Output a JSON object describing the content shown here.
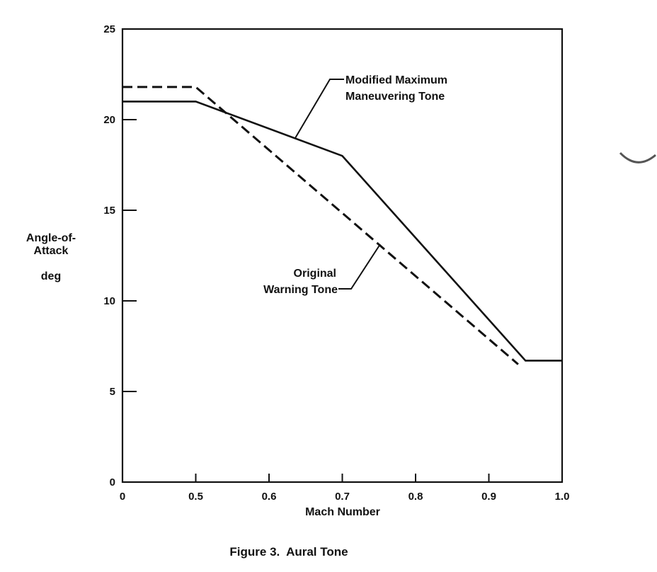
{
  "chart_data": {
    "type": "line",
    "x_axis": {
      "label": "Mach Number",
      "ticks": [
        0,
        0.5,
        0.6,
        0.7,
        0.8,
        0.9,
        1.0
      ],
      "tick_labels": [
        "0",
        "0.5",
        "0.6",
        "0.7",
        "0.8",
        "0.9",
        "1.0"
      ]
    },
    "y_axis": {
      "label_lines": [
        "Angle-of-",
        "Attack",
        "deg"
      ],
      "ticks": [
        0,
        5,
        10,
        15,
        20,
        25
      ],
      "tick_labels": [
        "0",
        "5",
        "10",
        "15",
        "20",
        "25"
      ],
      "ylim": [
        0,
        25
      ]
    },
    "grid": false,
    "series": [
      {
        "name": "Modified Maximum Maneuvering Tone",
        "style": "solid",
        "points": [
          [
            0,
            21.0
          ],
          [
            0.5,
            21.0
          ],
          [
            0.7,
            18.0
          ],
          [
            0.95,
            6.7
          ],
          [
            1.0,
            6.7
          ]
        ]
      },
      {
        "name": "Original Warning Tone",
        "style": "dashed",
        "points": [
          [
            0,
            21.8
          ],
          [
            0.5,
            21.8
          ],
          [
            0.94,
            6.5
          ]
        ]
      }
    ],
    "annotations": [
      {
        "lines": [
          "Modified Maximum",
          "Maneuvering Tone"
        ],
        "series": 0
      },
      {
        "lines": [
          "Original",
          "Warning Tone"
        ],
        "series": 1
      }
    ],
    "caption": "Figure 3.  Aural Tone"
  },
  "colors": {
    "ink": "#111111",
    "background": "#ffffff"
  }
}
